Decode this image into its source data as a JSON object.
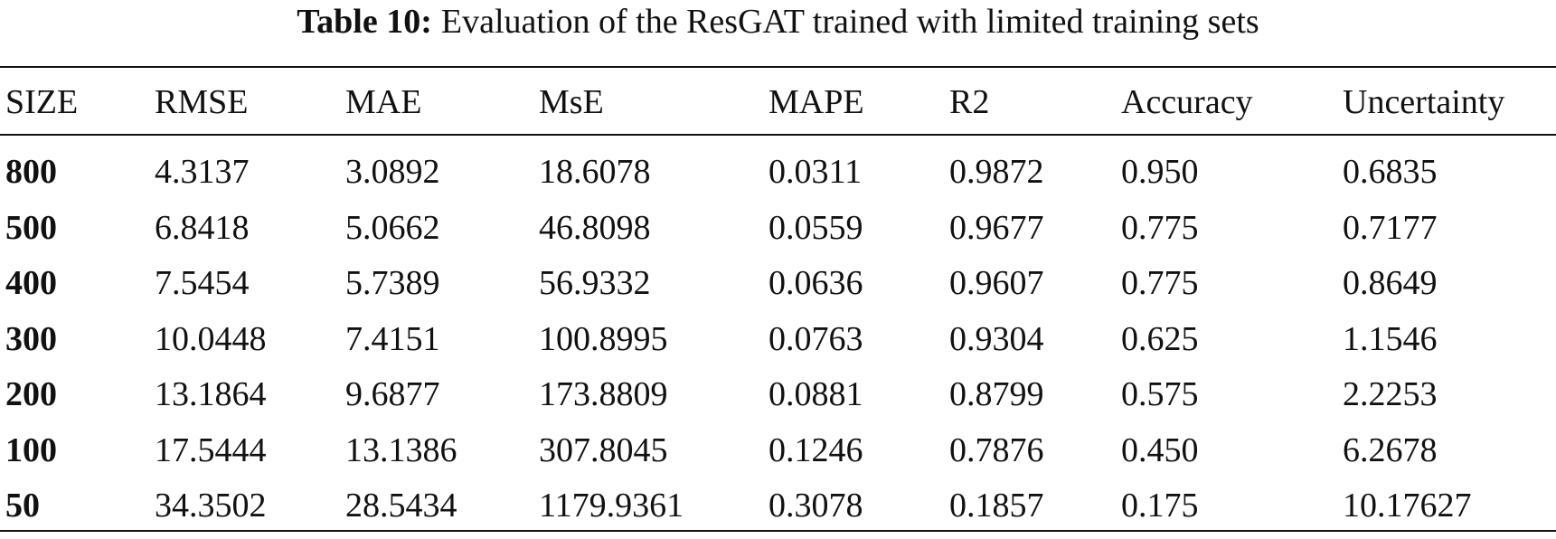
{
  "caption": {
    "label": "Table 10:",
    "text": "Evaluation of the ResGAT trained with limited training sets"
  },
  "columns": [
    "SIZE",
    "RMSE",
    "MAE",
    "MsE",
    "MAPE",
    "R2",
    "Accuracy",
    "Uncertainty"
  ],
  "rows": [
    [
      "800",
      "4.3137",
      "3.0892",
      "18.6078",
      "0.0311",
      "0.9872",
      "0.950",
      "0.6835"
    ],
    [
      "500",
      "6.8418",
      "5.0662",
      "46.8098",
      "0.0559",
      "0.9677",
      "0.775",
      "0.7177"
    ],
    [
      "400",
      "7.5454",
      "5.7389",
      "56.9332",
      "0.0636",
      "0.9607",
      "0.775",
      "0.8649"
    ],
    [
      "300",
      "10.0448",
      "7.4151",
      "100.8995",
      "0.0763",
      "0.9304",
      "0.625",
      "1.1546"
    ],
    [
      "200",
      "13.1864",
      "9.6877",
      "173.8809",
      "0.0881",
      "0.8799",
      "0.575",
      "2.2253"
    ],
    [
      "100",
      "17.5444",
      "13.1386",
      "307.8045",
      "0.1246",
      "0.7876",
      "0.450",
      "6.2678"
    ],
    [
      "50",
      "34.3502",
      "28.5434",
      "1179.9361",
      "0.3078",
      "0.1857",
      "0.175",
      "10.17627"
    ]
  ]
}
